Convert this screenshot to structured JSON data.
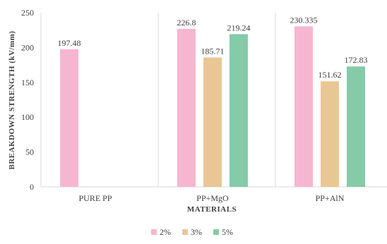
{
  "chart_data": {
    "type": "bar",
    "title": "",
    "xlabel": "MATERIALS",
    "ylabel": "BREAKDOWN STRENGTH (kV/mm)",
    "ylim": [
      0,
      250
    ],
    "yticks": [
      0,
      50,
      100,
      150,
      200,
      250
    ],
    "grid": "vertical category separators",
    "legend_position": "bottom",
    "categories": [
      "PURE PP",
      "PP+MgO",
      "PP+AlN"
    ],
    "series": [
      {
        "name": "2%",
        "color": "#f7b6cf",
        "values": [
          197.48,
          226.8,
          230.335
        ],
        "labels": [
          "197.48",
          "226.8",
          "230.335"
        ]
      },
      {
        "name": "3%",
        "color": "#e9c794",
        "values": [
          null,
          185.71,
          151.62
        ],
        "labels": [
          "",
          "185.71",
          "151.62"
        ]
      },
      {
        "name": "5%",
        "color": "#85cba9",
        "values": [
          null,
          219.24,
          172.83
        ],
        "labels": [
          "",
          "219.24",
          "172.83"
        ]
      }
    ]
  }
}
